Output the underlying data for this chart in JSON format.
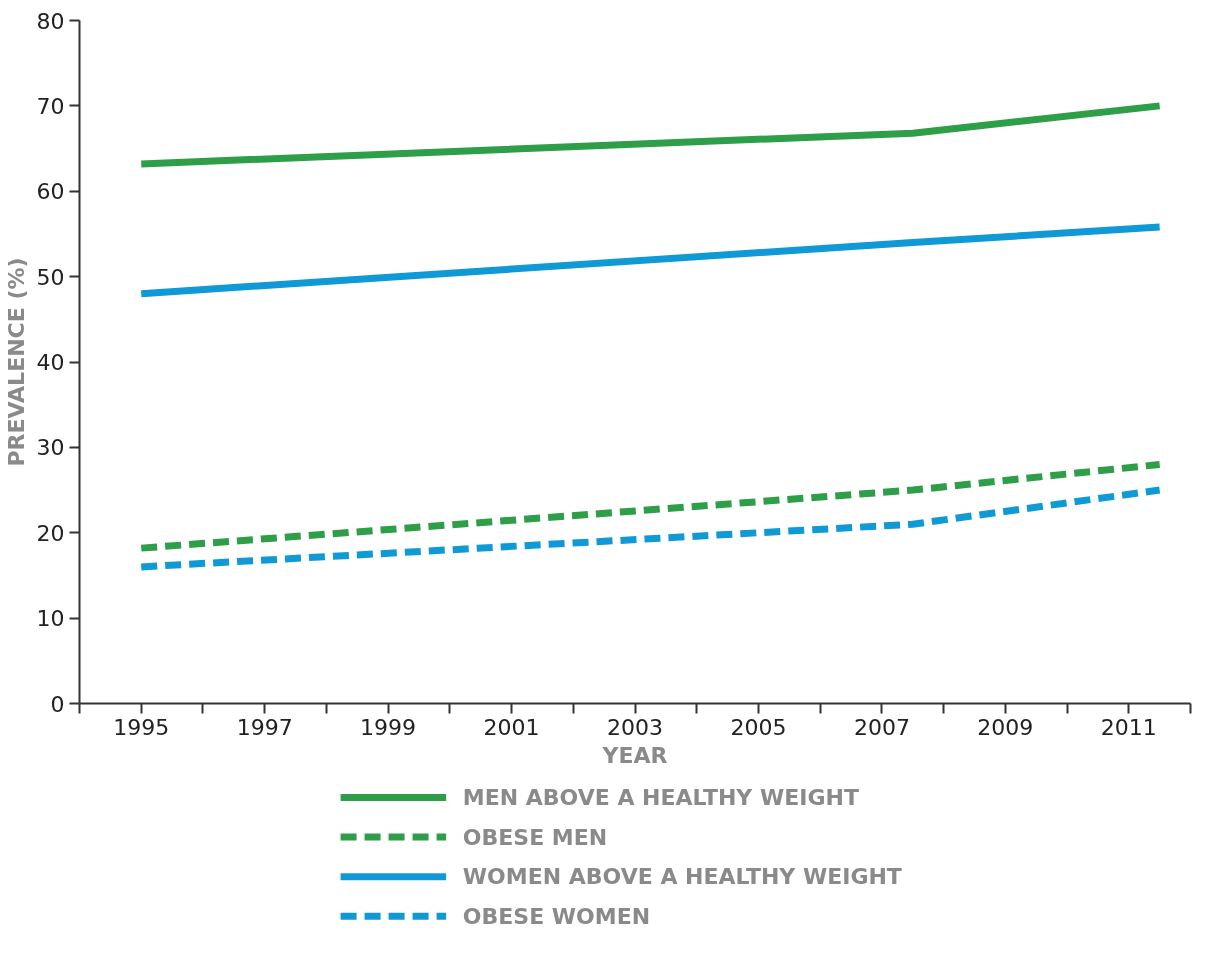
{
  "chart_data": {
    "type": "line",
    "xlabel": "YEAR",
    "ylabel": "PREVALENCE (%)",
    "xlim": [
      1994,
      2012
    ],
    "ylim": [
      0,
      80
    ],
    "xticks": [
      {
        "value": 1994,
        "label": null
      },
      1995,
      {
        "value": 1996,
        "label": null
      },
      1997,
      {
        "value": 1998,
        "label": null
      },
      1999,
      {
        "value": 2000,
        "label": null
      },
      2001,
      {
        "value": 2002,
        "label": null
      },
      2003,
      {
        "value": 2004,
        "label": null
      },
      2005,
      {
        "value": 2006,
        "label": null
      },
      2007,
      {
        "value": 2008,
        "label": null
      },
      2009,
      {
        "value": 2010,
        "label": null
      },
      2011,
      {
        "value": 2012,
        "label": null
      }
    ],
    "yticks": [
      0,
      10,
      20,
      30,
      40,
      50,
      60,
      70,
      80
    ],
    "x": [
      1995,
      2007.5,
      2011.5
    ],
    "series": [
      {
        "name": "MEN ABOVE A HEALTHY WEIGHT",
        "color": "#2e9e48",
        "line_style": "solid",
        "values": [
          63.2,
          66.8,
          70
        ]
      },
      {
        "name": "OBESE MEN",
        "color": "#2e9e48",
        "line_style": "dashed",
        "values": [
          18.2,
          25,
          28
        ]
      },
      {
        "name": "WOMEN ABOVE A HEALTHY WEIGHT",
        "color": "#0f9ad6",
        "line_style": "solid",
        "values": [
          48,
          54,
          55.8
        ]
      },
      {
        "name": "OBESE WOMEN",
        "color": "#0f9ad6",
        "line_style": "dashed",
        "values": [
          16,
          21,
          25
        ]
      }
    ],
    "grid": false,
    "legend": "bottom",
    "marker": "none"
  }
}
